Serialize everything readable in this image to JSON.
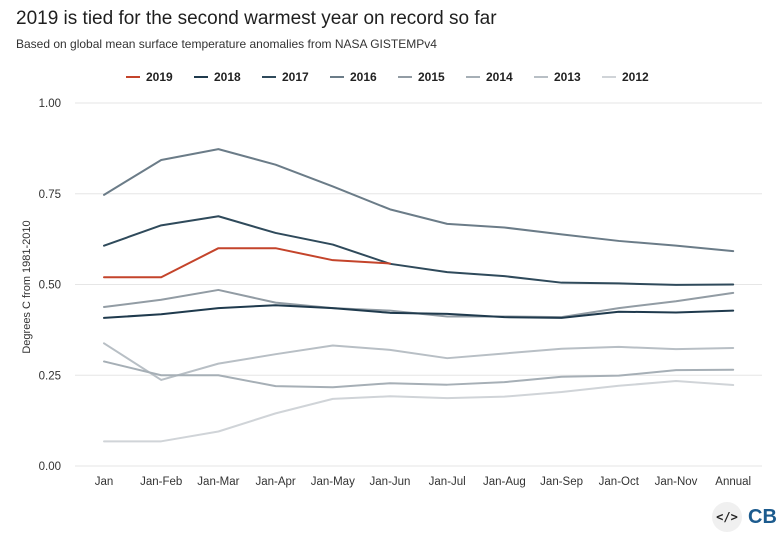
{
  "title": "2019 is tied for the second warmest year on record so far",
  "subtitle": "Based on global mean surface temperature anomalies from NASA GISTEMPv4",
  "logo_text": "CB",
  "code_icon_text": "</>",
  "chart_data": {
    "type": "line",
    "title": "2019 is tied for the second warmest year on record so far",
    "subtitle": "Based on global mean surface temperature anomalies from NASA GISTEMPv4",
    "xlabel": "",
    "ylabel": "Degrees C from 1981-2010",
    "categories": [
      "Jan",
      "Jan-Feb",
      "Jan-Mar",
      "Jan-Apr",
      "Jan-May",
      "Jan-Jun",
      "Jan-Jul",
      "Jan-Aug",
      "Jan-Sep",
      "Jan-Oct",
      "Jan-Nov",
      "Annual"
    ],
    "ylim": [
      0,
      1
    ],
    "yticks": [
      "0.00",
      "0.25",
      "0.50",
      "0.75",
      "1.00"
    ],
    "ytick_values": [
      0,
      0.25,
      0.5,
      0.75,
      1.0
    ],
    "grid": true,
    "legend_position": "top",
    "series": [
      {
        "name": "2019",
        "color": "#c4442b",
        "values": [
          0.52,
          0.52,
          0.6,
          0.6,
          0.567,
          0.558,
          null,
          null,
          null,
          null,
          null,
          null
        ]
      },
      {
        "name": "2018",
        "color": "#1f3a4d",
        "values": [
          0.408,
          0.418,
          0.435,
          0.443,
          0.435,
          0.422,
          0.419,
          0.41,
          0.408,
          0.425,
          0.423,
          0.428
        ]
      },
      {
        "name": "2017",
        "color": "#2f4a5b",
        "values": [
          0.607,
          0.663,
          0.688,
          0.642,
          0.61,
          0.557,
          0.534,
          0.523,
          0.505,
          0.503,
          0.499,
          0.5
        ]
      },
      {
        "name": "2016",
        "color": "#6b7c88",
        "values": [
          0.747,
          0.843,
          0.873,
          0.83,
          0.77,
          0.707,
          0.667,
          0.657,
          0.638,
          0.62,
          0.607,
          0.592
        ]
      },
      {
        "name": "2015",
        "color": "#929ca4",
        "values": [
          0.438,
          0.458,
          0.485,
          0.45,
          0.435,
          0.428,
          0.412,
          0.412,
          0.41,
          0.435,
          0.454,
          0.477
        ]
      },
      {
        "name": "2014",
        "color": "#a6afb6",
        "values": [
          0.288,
          0.25,
          0.25,
          0.22,
          0.217,
          0.228,
          0.224,
          0.231,
          0.246,
          0.249,
          0.264,
          0.265
        ]
      },
      {
        "name": "2013",
        "color": "#b8bfc5",
        "values": [
          0.338,
          0.237,
          0.282,
          0.308,
          0.332,
          0.32,
          0.297,
          0.31,
          0.323,
          0.328,
          0.322,
          0.325
        ]
      },
      {
        "name": "2012",
        "color": "#d0d4d8",
        "values": [
          0.068,
          0.068,
          0.095,
          0.145,
          0.185,
          0.192,
          0.187,
          0.191,
          0.204,
          0.221,
          0.234,
          0.223
        ]
      }
    ]
  }
}
